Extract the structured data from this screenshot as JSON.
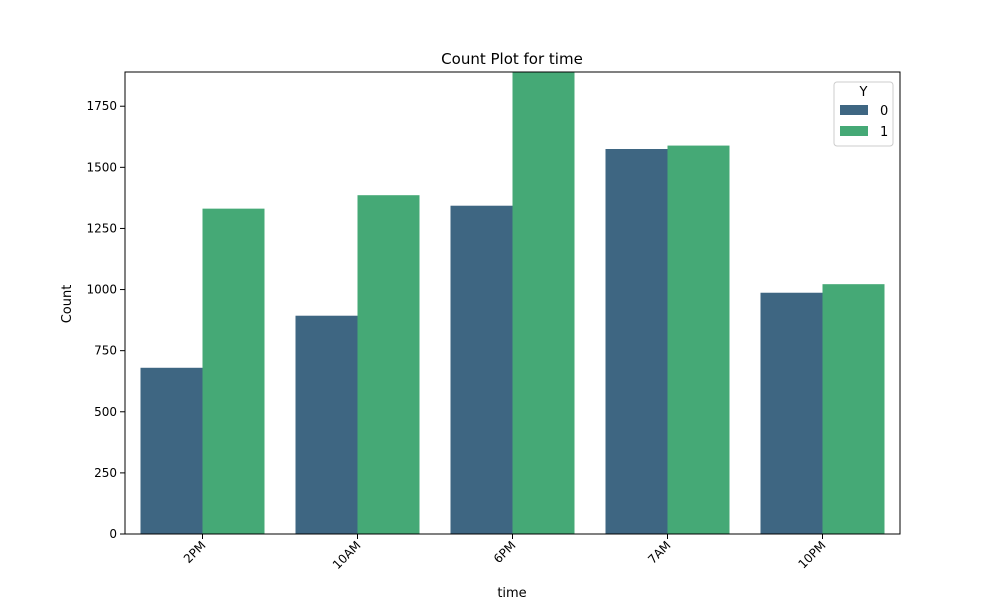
{
  "chart_data": {
    "type": "bar",
    "title": "Count Plot for time",
    "xlabel": "time",
    "ylabel": "Count",
    "categories": [
      "2PM",
      "10AM",
      "6PM",
      "7AM",
      "10PM"
    ],
    "series": [
      {
        "name": "0",
        "values": [
          680,
          893,
          1343,
          1575,
          987
        ],
        "color": "#3e6682"
      },
      {
        "name": "1",
        "values": [
          1331,
          1386,
          1888,
          1589,
          1022
        ],
        "color": "#45a976"
      }
    ],
    "ylim": [
      0,
      1890
    ],
    "yticks": [
      0,
      250,
      500,
      750,
      1000,
      1250,
      1500,
      1750
    ],
    "ytick_labels": [
      "0",
      "250",
      "500",
      "750",
      "1000",
      "1250",
      "1500",
      "1750"
    ],
    "legend": {
      "title": "Y",
      "placement": "top-right"
    },
    "grid": false
  }
}
